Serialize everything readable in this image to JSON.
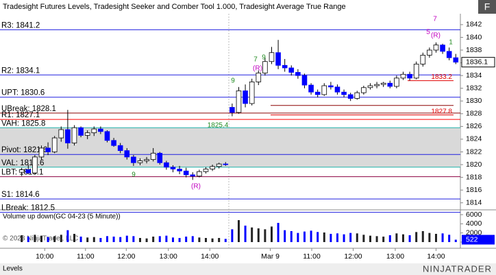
{
  "header": "Tradesight Futures Levels, Tradesight Seeker and Comber Tool 1.000, Tradesight Average True Range",
  "button": "F",
  "copyright": "© 2023 NinjaTrader, LLC",
  "tab": "Levels",
  "logo": "NINJATRADER",
  "chart_data": [
    {
      "type": "candlestick",
      "xlim": [
        -3.3,
        66.7
      ],
      "xticks": [
        {
          "value": 3.5,
          "label": "10:00"
        },
        {
          "value": 9.7,
          "label": "11:00"
        },
        {
          "value": 15.9,
          "label": "12:00"
        },
        {
          "value": 22.3,
          "label": "13:00"
        },
        {
          "value": 28.6,
          "label": "14:00"
        },
        {
          "value": 37.8,
          "label": "Mar 9"
        },
        {
          "value": 44.1,
          "label": "11:00"
        },
        {
          "value": 50.4,
          "label": "12:00"
        },
        {
          "value": 56.8,
          "label": "13:00"
        },
        {
          "value": 63.0,
          "label": "14:00"
        }
      ],
      "ylim": [
        1813,
        1843.5
      ],
      "yticks": [
        1814,
        1816,
        1818,
        1820,
        1822,
        1824,
        1826,
        1828,
        1830,
        1832,
        1834,
        1836,
        1838,
        1840,
        1842
      ],
      "up_color": "#ffffff",
      "down_color": "#0000ff",
      "open": [
        1818.8,
        1819.2,
        1818.7,
        1821.2,
        1822.6,
        1822,
        1824.2,
        1825.5,
        1823.4,
        1825.8,
        1824.6,
        1825,
        1825.6,
        1825.2,
        1823.8,
        1823,
        1822.2,
        1821.2,
        1820.3,
        1820.6,
        1820.8,
        1821.8,
        1820.3,
        1819.6,
        1819.3,
        1819,
        1818.4,
        1818.2,
        1818.9,
        1819.3,
        1819.7,
        1820.1,
        1829,
        1828.2,
        1831.6,
        1829.6,
        1833,
        1834.4,
        1836.2,
        1837.6,
        1835.6,
        1835.2,
        1834.5,
        1834,
        1832.5,
        1831.4,
        1831,
        1832.4,
        1832.2,
        1831.4,
        1831,
        1830.4,
        1831.3,
        1832.1,
        1832.4,
        1832.6,
        1832.8,
        1832.3,
        1833.6,
        1834.2,
        1833.6,
        1835.8,
        1837.2,
        1838,
        1838.8,
        1837.8,
        1836.8
      ],
      "high": [
        1819.5,
        1820,
        1821.5,
        1823,
        1823.5,
        1824.5,
        1826,
        1828.6,
        1826.2,
        1826,
        1825.4,
        1826,
        1826,
        1825.4,
        1824.2,
        1823.4,
        1822.6,
        1821.5,
        1821,
        1821.2,
        1822.6,
        1822,
        1820.6,
        1819.9,
        1819.8,
        1819.5,
        1818.8,
        1819.2,
        1819.6,
        1820,
        1820.3,
        1820.4,
        1829.6,
        1832.2,
        1832.6,
        1833.5,
        1834.8,
        1836.8,
        1838.5,
        1839.6,
        1836.6,
        1835.6,
        1835,
        1834.3,
        1832.8,
        1831.8,
        1832.8,
        1833,
        1832.6,
        1831.8,
        1831.3,
        1831.6,
        1832.4,
        1832.8,
        1833,
        1833,
        1833.2,
        1834,
        1834.6,
        1834.6,
        1836.2,
        1837.6,
        1838.4,
        1839.2,
        1839,
        1838.4,
        1837.4
      ],
      "low": [
        1818.2,
        1818.5,
        1818.5,
        1820.8,
        1821.5,
        1821.8,
        1823.6,
        1822.5,
        1823,
        1824.3,
        1824,
        1824.5,
        1824.8,
        1823.5,
        1822.8,
        1821.8,
        1820.8,
        1819.8,
        1819.9,
        1820.2,
        1820.5,
        1820,
        1819.2,
        1818.8,
        1818.5,
        1818,
        1817.6,
        1818,
        1818.6,
        1819,
        1819.4,
        1819.8,
        1827.6,
        1828,
        1829,
        1829.3,
        1832.5,
        1834,
        1835.8,
        1835,
        1834.6,
        1834,
        1833.5,
        1832,
        1831,
        1830.6,
        1830.8,
        1831.8,
        1831,
        1830.6,
        1830,
        1830.2,
        1831,
        1831.8,
        1832,
        1832.2,
        1832,
        1832,
        1833.3,
        1833.2,
        1833.4,
        1835.4,
        1836.8,
        1837.6,
        1837.4,
        1836.4,
        1835.8
      ],
      "close": [
        1819.2,
        1818.7,
        1821.2,
        1822.6,
        1822,
        1824.2,
        1825.5,
        1823.4,
        1825.8,
        1824.6,
        1825,
        1825.6,
        1825.2,
        1823.8,
        1823,
        1822.2,
        1821.2,
        1820.3,
        1820.6,
        1820.8,
        1821.8,
        1820.3,
        1819.6,
        1819.3,
        1819,
        1818.4,
        1818.2,
        1818.9,
        1819.3,
        1819.7,
        1820.1,
        1820,
        1828.2,
        1831.6,
        1829.6,
        1833,
        1834.4,
        1836.2,
        1837.6,
        1835.6,
        1835.2,
        1834.5,
        1834,
        1832.5,
        1831.4,
        1831,
        1832.4,
        1832.2,
        1831.4,
        1831,
        1830.4,
        1831.3,
        1832.1,
        1832.4,
        1832.6,
        1832.8,
        1832.3,
        1833.6,
        1834.2,
        1833.6,
        1835.8,
        1837.2,
        1838,
        1838.8,
        1837.8,
        1836.8,
        1836.1
      ],
      "last": {
        "value": 1836.1,
        "label": "1836.1"
      },
      "value_area_color": "#d9d9d9",
      "levels": [
        {
          "label": "R3: 1841.2",
          "value": 1841.2,
          "color": "#2020e0"
        },
        {
          "label": "R2: 1834.1",
          "value": 1834.1,
          "color": "#2020e0"
        },
        {
          "label": "UPT: 1830.6",
          "value": 1830.6,
          "color": "#2020e0"
        },
        {
          "label": "UBreak: 1828.1",
          "value": 1828.1,
          "color": "#8b0000"
        },
        {
          "label": "R1: 1827.1",
          "value": 1827.1,
          "color": "#ff0000"
        },
        {
          "label": "VAH: 1825.8",
          "value": 1825.8,
          "color": "#20b2aa"
        },
        {
          "label": "Pivot: 1821.6",
          "value": 1821.6,
          "color": "#2020e0"
        },
        {
          "label": "VAL: 1819.6",
          "value": 1819.6,
          "color": "#20b2aa"
        },
        {
          "label": "LBT: 1818.1",
          "value": 1818.1,
          "color": "#8b0040"
        },
        {
          "label": "S1: 1814.6",
          "value": 1814.6,
          "color": "#2020e0"
        },
        {
          "label": "LBreak: 1812.5",
          "value": 1812.5,
          "color": "#2020e0"
        }
      ],
      "segments": [
        {
          "value": 1833.2,
          "label": "1833.2",
          "color": "#e00000"
        },
        {
          "value": 1827.8,
          "label": "1827.8",
          "color": "#e00000"
        },
        {
          "value": 1829.3,
          "color": "#8b0000"
        }
      ],
      "annotations": [
        {
          "text": "(R)",
          "color": "#c000c0"
        },
        {
          "text": "7",
          "color": "#228b22"
        },
        {
          "text": "9",
          "color": "#228b22"
        },
        {
          "text": "9",
          "color": "#228b22"
        },
        {
          "text": "(R)",
          "color": "#c000c0"
        },
        {
          "text": "9",
          "color": "#228b22"
        },
        {
          "text": "7",
          "color": "#c000c0"
        },
        {
          "text": "(R)",
          "color": "#c000c0"
        },
        {
          "text": "1825.4",
          "color": "#228b22"
        },
        {
          "text": "1",
          "color": "#228b22"
        },
        {
          "text": "5",
          "color": "#c000c0"
        }
      ]
    },
    {
      "type": "bar",
      "title": "Volume up down(GC 04-23 (5 Minute))",
      "ylim": [
        0,
        6750
      ],
      "yticks": [
        0,
        2000,
        4000,
        6000
      ],
      "values": [
        1500,
        1200,
        1600,
        1400,
        1100,
        1300,
        1600,
        2600,
        1800,
        1200,
        1000,
        1100,
        900,
        1300,
        1200,
        1100,
        1400,
        1300,
        900,
        800,
        1200,
        1300,
        1400,
        1000,
        900,
        1200,
        1300,
        1000,
        900,
        800,
        900,
        700,
        2800,
        4800,
        3600,
        3200,
        3000,
        2800,
        3400,
        4200,
        2600,
        2400,
        2000,
        2300,
        2500,
        2200,
        2100,
        1800,
        1900,
        1700,
        2000,
        1900,
        1600,
        1400,
        1300,
        1200,
        1500,
        1900,
        1700,
        1500,
        2200,
        2400,
        2000,
        1800,
        1900,
        1600,
        522
      ],
      "last": {
        "value": 522,
        "label": "522"
      }
    }
  ]
}
